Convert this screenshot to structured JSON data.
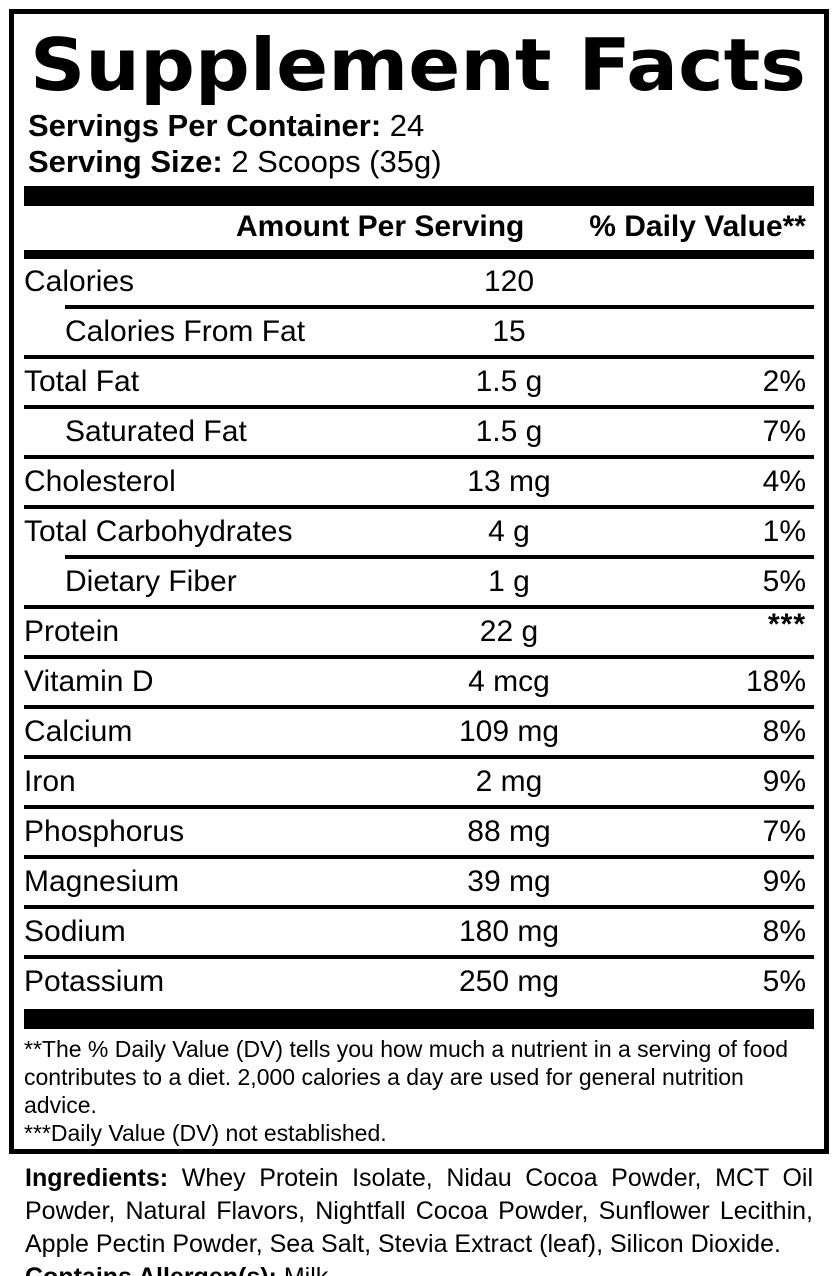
{
  "panel": {
    "title": "Supplement Facts",
    "servings_per_container_label": "Servings Per Container:",
    "servings_per_container_value": "24",
    "serving_size_label": "Serving Size:",
    "serving_size_value": "2 Scoops (35g)",
    "columns": {
      "amount": "Amount Per Serving",
      "daily_value": "% Daily Value**"
    },
    "rows": [
      {
        "name": "Calories",
        "amount": "120",
        "dv": "",
        "indent": false,
        "sep": "none",
        "dv_top": false
      },
      {
        "name": "Calories From Fat",
        "amount": "15",
        "dv": "",
        "indent": true,
        "sep": "indent",
        "dv_top": false
      },
      {
        "name": "Total Fat",
        "amount": "1.5 g",
        "dv": "2%",
        "indent": false,
        "sep": "full",
        "dv_top": false
      },
      {
        "name": "Saturated Fat",
        "amount": "1.5 g",
        "dv": "7%",
        "indent": true,
        "sep": "full",
        "dv_top": false
      },
      {
        "name": "Cholesterol",
        "amount": "13 mg",
        "dv": "4%",
        "indent": false,
        "sep": "full",
        "dv_top": false
      },
      {
        "name": "Total Carbohydrates",
        "amount": "4 g",
        "dv": "1%",
        "indent": false,
        "sep": "full",
        "dv_top": false
      },
      {
        "name": "Dietary Fiber",
        "amount": "1 g",
        "dv": "5%",
        "indent": true,
        "sep": "indent",
        "dv_top": false
      },
      {
        "name": "Protein",
        "amount": "22 g",
        "dv": "***",
        "indent": false,
        "sep": "full",
        "dv_top": true
      },
      {
        "name": "Vitamin D",
        "amount": "4 mcg",
        "dv": "18%",
        "indent": false,
        "sep": "full",
        "dv_top": false
      },
      {
        "name": "Calcium",
        "amount": "109 mg",
        "dv": "8%",
        "indent": false,
        "sep": "full",
        "dv_top": false
      },
      {
        "name": "Iron",
        "amount": "2 mg",
        "dv": "9%",
        "indent": false,
        "sep": "full",
        "dv_top": false
      },
      {
        "name": "Phosphorus",
        "amount": "88 mg",
        "dv": "7%",
        "indent": false,
        "sep": "full",
        "dv_top": false
      },
      {
        "name": "Magnesium",
        "amount": "39 mg",
        "dv": "9%",
        "indent": false,
        "sep": "full",
        "dv_top": false
      },
      {
        "name": "Sodium",
        "amount": "180 mg",
        "dv": "8%",
        "indent": false,
        "sep": "full",
        "dv_top": false
      },
      {
        "name": "Potassium",
        "amount": "250 mg",
        "dv": "5%",
        "indent": false,
        "sep": "full",
        "dv_top": false
      }
    ],
    "footnotes": {
      "daily_value": "**The % Daily Value (DV) tells you how much a nutrient in a serving of food contributes to a diet. 2,000 calories a day are used for general nutrition advice.",
      "not_established": "***Daily Value (DV) not established."
    }
  },
  "ingredients": {
    "label": "Ingredients:",
    "text": "Whey Protein Isolate, Nidau Cocoa Powder, MCT Oil Powder, Natural Flavors, Nightfall Cocoa Powder, Sunflower Lecithin, Apple Pectin Powder, Sea Salt, Stevia Extract (leaf), Silicon Dioxide.",
    "allergen_label": "Contains Allergen(s):",
    "allergen_value": "Milk"
  },
  "colors": {
    "ink": "#000000",
    "background": "#ffffff"
  }
}
